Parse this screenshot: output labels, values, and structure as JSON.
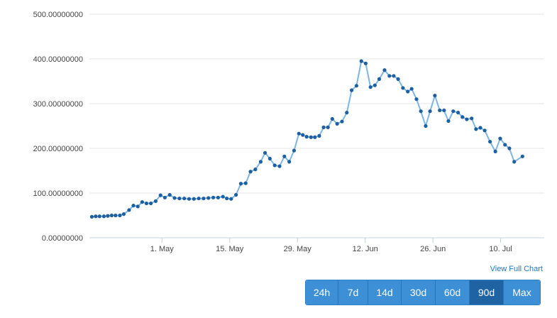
{
  "chart_data": {
    "type": "line",
    "title": "",
    "xlabel": "",
    "ylabel": "",
    "ylim": [
      0,
      500
    ],
    "y_ticks": [
      "0.00000000",
      "100.00000000",
      "200.00000000",
      "300.00000000",
      "400.00000000",
      "500.00000000"
    ],
    "x_ticks": [
      {
        "label": "1. May",
        "day": 15
      },
      {
        "label": "15. May",
        "day": 29
      },
      {
        "label": "29. May",
        "day": 43
      },
      {
        "label": "12. Jun",
        "day": 57
      },
      {
        "label": "26. Jun",
        "day": 71
      },
      {
        "label": "10. Jul",
        "day": 85
      }
    ],
    "x_range": [
      0,
      94
    ],
    "grid": "horizontal",
    "legend": "none",
    "series": [
      {
        "values": [
          [
            0.5,
            47
          ],
          [
            1.3,
            48
          ],
          [
            2.1,
            48
          ],
          [
            3.0,
            48
          ],
          [
            3.8,
            49
          ],
          [
            4.6,
            50
          ],
          [
            5.4,
            50
          ],
          [
            6.3,
            50
          ],
          [
            7.1,
            53
          ],
          [
            8.2,
            62
          ],
          [
            9.1,
            72
          ],
          [
            10.0,
            70
          ],
          [
            10.9,
            80
          ],
          [
            11.8,
            77
          ],
          [
            12.7,
            77
          ],
          [
            13.7,
            82
          ],
          [
            14.7,
            95
          ],
          [
            15.6,
            90
          ],
          [
            16.6,
            96
          ],
          [
            17.6,
            89
          ],
          [
            18.6,
            88
          ],
          [
            19.6,
            88
          ],
          [
            20.6,
            87
          ],
          [
            21.6,
            87
          ],
          [
            22.6,
            88
          ],
          [
            23.6,
            88
          ],
          [
            24.6,
            89
          ],
          [
            25.6,
            90
          ],
          [
            26.6,
            90
          ],
          [
            27.6,
            92
          ],
          [
            28.4,
            88
          ],
          [
            29.3,
            87
          ],
          [
            30.3,
            96
          ],
          [
            31.3,
            121
          ],
          [
            32.3,
            122
          ],
          [
            33.3,
            148
          ],
          [
            34.3,
            153
          ],
          [
            35.4,
            170
          ],
          [
            36.3,
            190
          ],
          [
            37.3,
            177
          ],
          [
            38.3,
            162
          ],
          [
            39.3,
            160
          ],
          [
            40.3,
            182
          ],
          [
            41.3,
            170
          ],
          [
            42.3,
            195
          ],
          [
            43.3,
            233
          ],
          [
            44.1,
            230
          ],
          [
            44.9,
            226
          ],
          [
            45.8,
            225
          ],
          [
            46.6,
            225
          ],
          [
            47.5,
            228
          ],
          [
            48.4,
            247
          ],
          [
            49.3,
            247
          ],
          [
            50.2,
            266
          ],
          [
            51.2,
            255
          ],
          [
            52.2,
            260
          ],
          [
            53.2,
            280
          ],
          [
            54.2,
            330
          ],
          [
            55.2,
            340
          ],
          [
            56.2,
            395
          ],
          [
            57.1,
            390
          ],
          [
            58.1,
            337
          ],
          [
            59.0,
            341
          ],
          [
            59.9,
            355
          ],
          [
            61.0,
            375
          ],
          [
            62.0,
            362
          ],
          [
            62.9,
            362
          ],
          [
            63.8,
            355
          ],
          [
            64.8,
            335
          ],
          [
            65.8,
            327
          ],
          [
            66.6,
            333
          ],
          [
            67.6,
            310
          ],
          [
            68.5,
            283
          ],
          [
            69.5,
            250
          ],
          [
            70.4,
            283
          ],
          [
            71.4,
            318
          ],
          [
            72.4,
            285
          ],
          [
            73.3,
            285
          ],
          [
            74.2,
            261
          ],
          [
            75.2,
            283
          ],
          [
            76.2,
            280
          ],
          [
            77.1,
            270
          ],
          [
            78.0,
            265
          ],
          [
            79.0,
            267
          ],
          [
            79.9,
            243
          ],
          [
            80.8,
            246
          ],
          [
            81.7,
            240
          ],
          [
            82.8,
            215
          ],
          [
            83.9,
            193
          ],
          [
            84.9,
            222
          ],
          [
            85.9,
            208
          ],
          [
            86.8,
            200
          ],
          [
            87.8,
            170
          ],
          [
            89.5,
            182
          ]
        ]
      }
    ],
    "colors": {
      "line": "#7db5e4",
      "marker": "#1d5fa0",
      "grid": "#e6e6e6",
      "axis": "#c0d0e0"
    }
  },
  "links": {
    "view_full_chart": "View Full Chart"
  },
  "range_buttons": [
    {
      "label": "24h",
      "active": false
    },
    {
      "label": "7d",
      "active": false
    },
    {
      "label": "14d",
      "active": false
    },
    {
      "label": "30d",
      "active": false
    },
    {
      "label": "60d",
      "active": false
    },
    {
      "label": "90d",
      "active": true
    },
    {
      "label": "Max",
      "active": false
    }
  ]
}
